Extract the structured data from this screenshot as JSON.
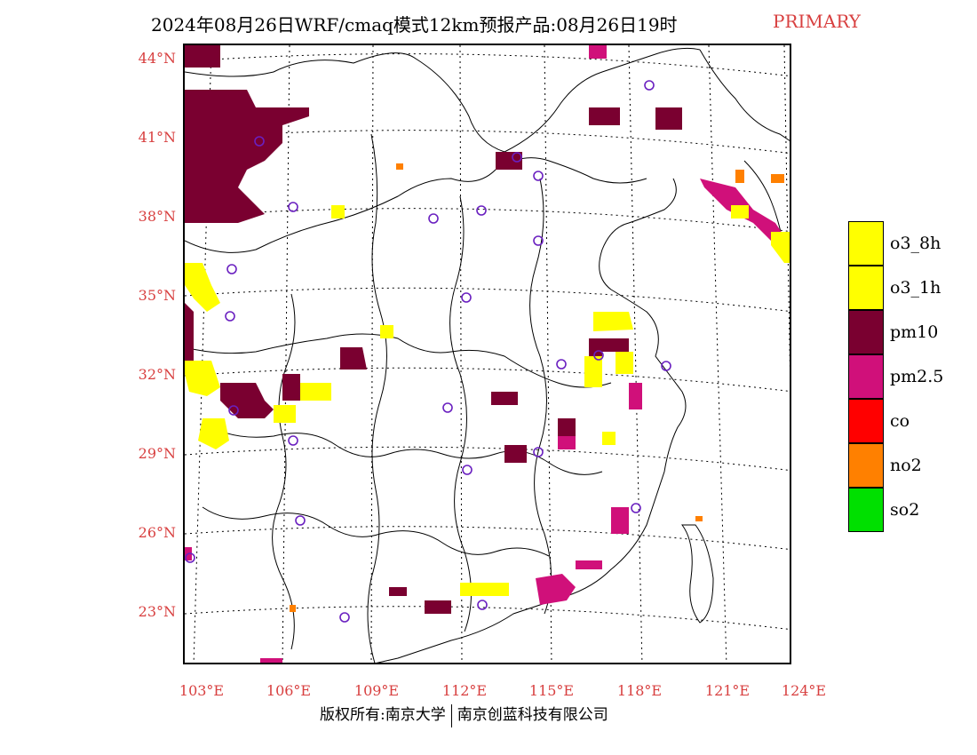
{
  "title": {
    "main": "2024年08月26日WRF/cmaq模式12km预报产品:08月26日19时",
    "tag": "PRIMARY"
  },
  "axes": {
    "lat_labels": [
      "44°N",
      "41°N",
      "38°N",
      "35°N",
      "32°N",
      "29°N",
      "26°N",
      "23°N"
    ],
    "lon_labels": [
      "103°E",
      "106°E",
      "109°E",
      "112°E",
      "115°E",
      "118°E",
      "121°E",
      "124°E"
    ]
  },
  "legend": [
    {
      "label": "o3_8h",
      "color": "#ffff00"
    },
    {
      "label": "o3_1h",
      "color": "#ffff00"
    },
    {
      "label": "pm10",
      "color": "#7a0030"
    },
    {
      "label": "pm2.5",
      "color": "#d0107a"
    },
    {
      "label": "co",
      "color": "#ff0000"
    },
    {
      "label": "no2",
      "color": "#ff8000"
    },
    {
      "label": "so2",
      "color": "#00e000"
    }
  ],
  "copyright": {
    "left": "版权所有:南京大学",
    "right": "南京创蓝科技有限公司"
  }
}
